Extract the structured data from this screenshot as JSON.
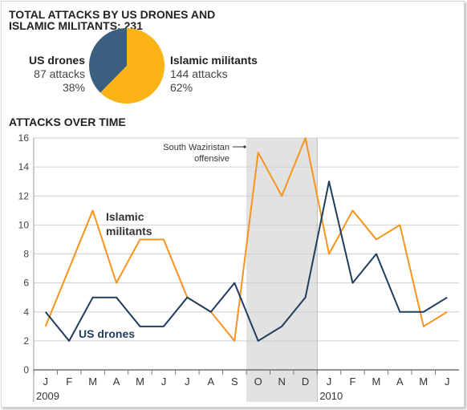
{
  "header": {
    "title_line1": "TOTAL ATTACKS BY US DRONES AND",
    "title_line2": "ISLAMIC MILITANTS: 231"
  },
  "pie": {
    "drones": {
      "name": "US drones",
      "attacks": "87 attacks",
      "percent": "38%",
      "value": 87,
      "color": "#3b5f7e"
    },
    "militants": {
      "name": "Islamic militants",
      "attacks": "144 attacks",
      "percent": "62%",
      "value": 144,
      "color": "#fbb315"
    }
  },
  "line_chart_title": "ATTACKS OVER TIME",
  "chart_data": {
    "type": "line",
    "categories": [
      "J",
      "F",
      "M",
      "A",
      "M",
      "J",
      "J",
      "A",
      "S",
      "O",
      "N",
      "D",
      "J",
      "F",
      "M",
      "A",
      "M",
      "J"
    ],
    "year_labels": [
      {
        "label": "2009",
        "index": 0
      },
      {
        "label": "2010",
        "index": 12
      }
    ],
    "series": [
      {
        "name": "Islamic militants",
        "label_line1": "Islamic",
        "label_line2": "militants",
        "color": "#f7941d",
        "values": [
          3,
          7,
          11,
          6,
          9,
          9,
          5,
          4,
          2,
          15,
          12,
          16,
          8,
          11,
          9,
          10,
          3,
          4
        ]
      },
      {
        "name": "US drones",
        "label_line1": "US drones",
        "color": "#1f3e5e",
        "values": [
          4,
          2,
          5,
          5,
          3,
          3,
          5,
          4,
          6,
          2,
          3,
          5,
          13,
          6,
          8,
          4,
          4,
          5
        ]
      }
    ],
    "ylim": [
      0,
      16
    ],
    "yticks": [
      0,
      2,
      4,
      6,
      8,
      10,
      12,
      14,
      16
    ],
    "grid": true,
    "shaded_region": {
      "from_index": 9,
      "to_index": 11,
      "label_line1": "South Waziristan",
      "label_line2": "offensive"
    }
  }
}
